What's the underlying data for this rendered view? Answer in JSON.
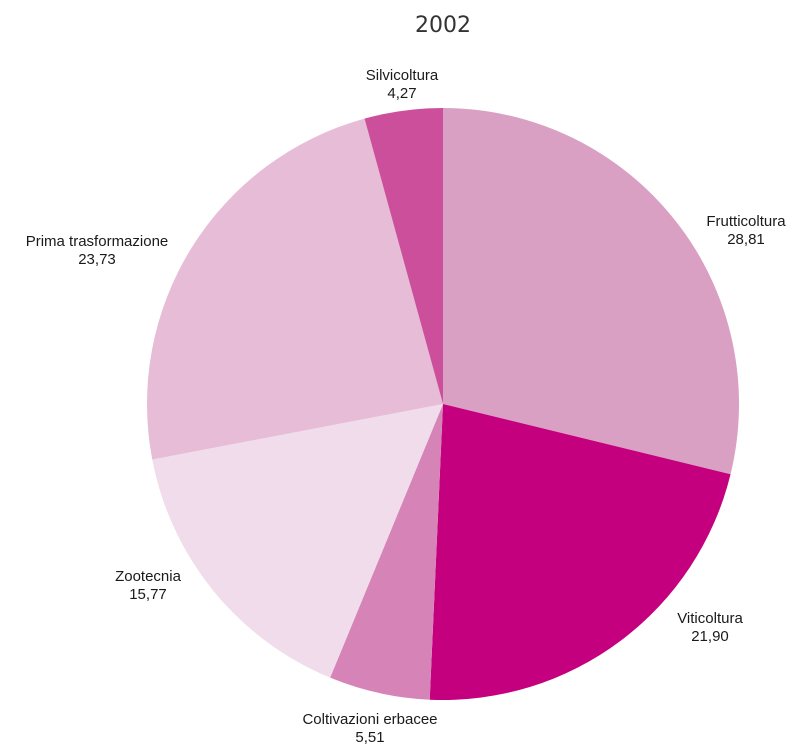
{
  "chart_data": {
    "type": "pie",
    "title": "2002",
    "start_angle_deg": 0,
    "direction": "clockwise",
    "slices": [
      {
        "label": "Frutticoltura",
        "value_label": "28,81",
        "value": 28.81,
        "color": "#d9a0c3"
      },
      {
        "label": "Viticoltura",
        "value_label": "21,90",
        "value": 21.9,
        "color": "#c4007f"
      },
      {
        "label": "Coltivazioni erbacee",
        "value_label": "5,51",
        "value": 5.51,
        "color": "#d684b8"
      },
      {
        "label": "Zootecnia",
        "value_label": "15,77",
        "value": 15.77,
        "color": "#f0dcea"
      },
      {
        "label": "Prima trasformazione",
        "value_label": "23,73",
        "value": 23.73,
        "color": "#e6bcd6"
      },
      {
        "label": "Silvicoltura",
        "value_label": "4,27",
        "value": 4.27,
        "color": "#cc4f9c"
      }
    ]
  }
}
